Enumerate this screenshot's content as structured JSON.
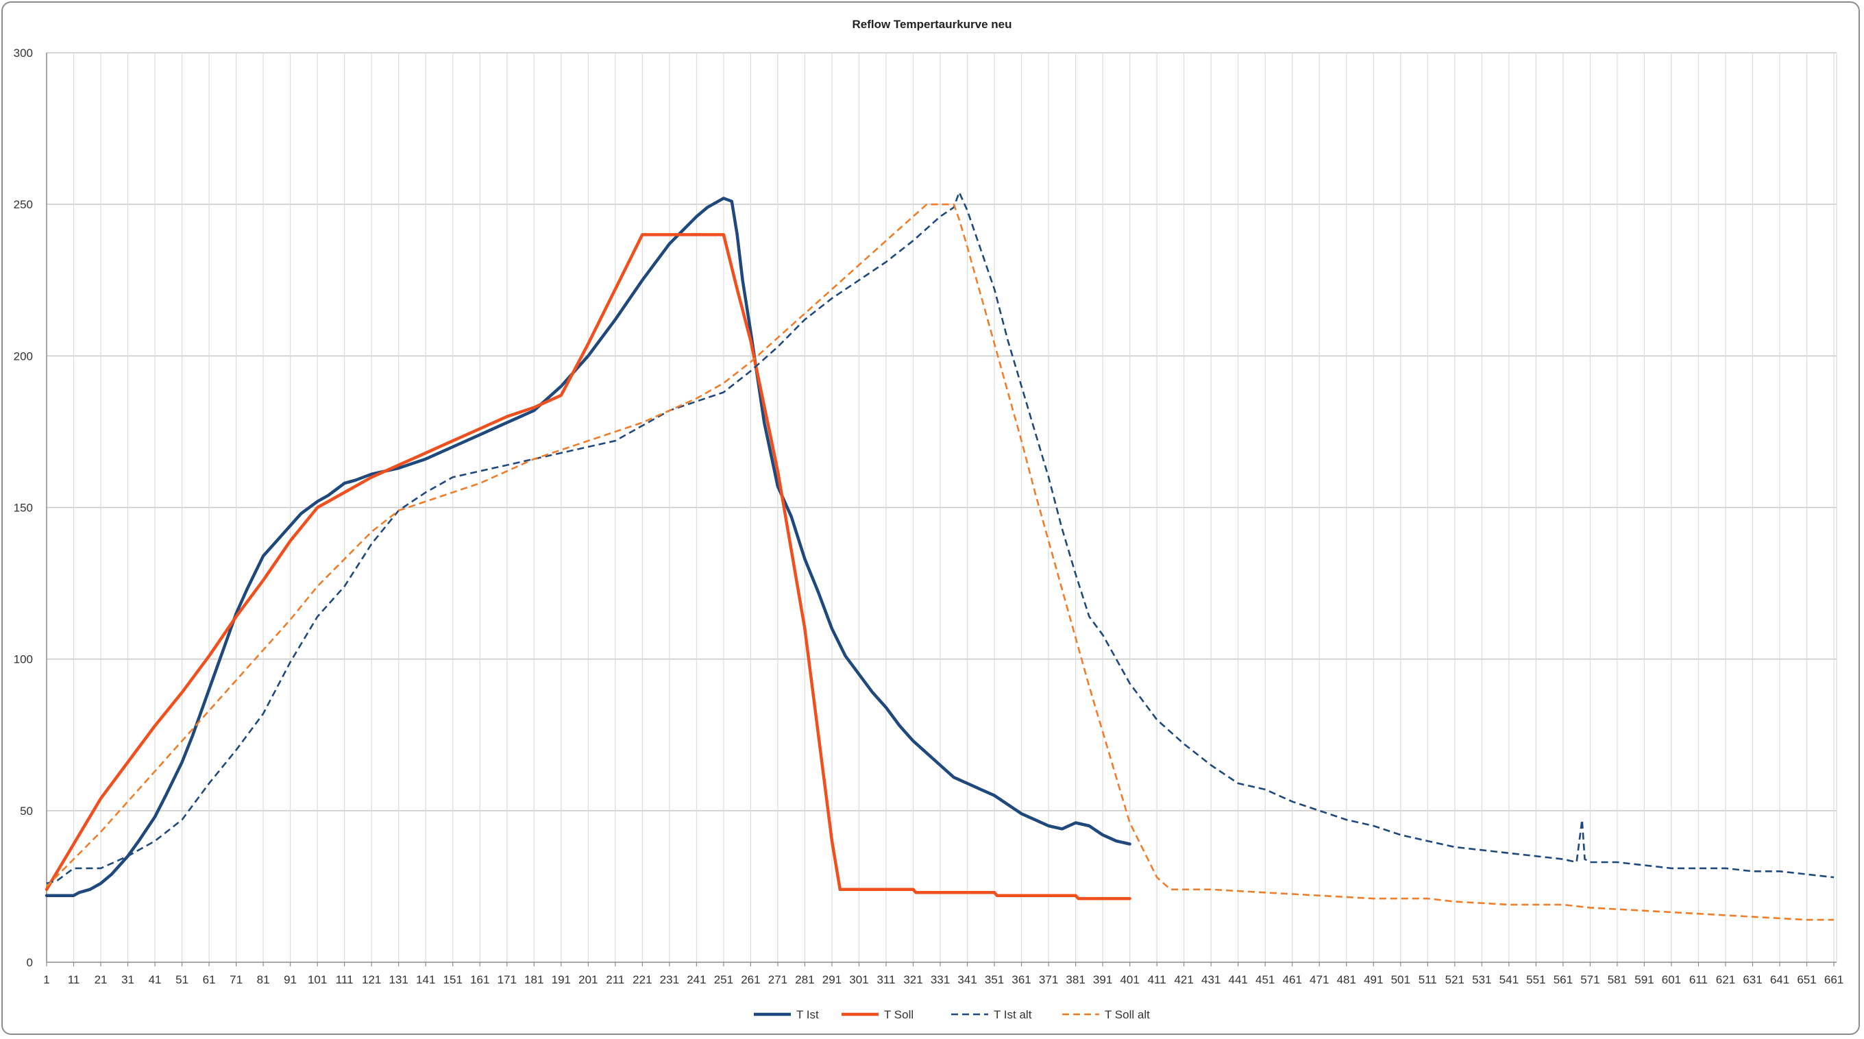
{
  "chart_data": {
    "type": "line",
    "title": "Reflow Tempertaurkurve neu",
    "xlabel": "",
    "ylabel": "",
    "xlim": [
      1,
      662
    ],
    "ylim": [
      0,
      300
    ],
    "y_ticks": [
      0,
      50,
      100,
      150,
      200,
      250,
      300
    ],
    "x_ticks": [
      1,
      11,
      21,
      31,
      41,
      51,
      61,
      71,
      81,
      91,
      101,
      111,
      121,
      131,
      141,
      151,
      161,
      171,
      181,
      191,
      201,
      211,
      221,
      231,
      241,
      251,
      261,
      271,
      281,
      291,
      301,
      311,
      321,
      331,
      341,
      351,
      361,
      371,
      381,
      391,
      401,
      411,
      421,
      431,
      441,
      451,
      461,
      471,
      481,
      491,
      501,
      511,
      521,
      531,
      541,
      551,
      561,
      571,
      581,
      591,
      601,
      611,
      621,
      631,
      641,
      651,
      661
    ],
    "grid": true,
    "legend_position": "bottom",
    "series": [
      {
        "name": "T Ist",
        "color": "#1f497d",
        "style": "solid",
        "points": [
          [
            1,
            22
          ],
          [
            5,
            22
          ],
          [
            11,
            22
          ],
          [
            13,
            23
          ],
          [
            17,
            24
          ],
          [
            21,
            26
          ],
          [
            25,
            29
          ],
          [
            31,
            35
          ],
          [
            35,
            40
          ],
          [
            41,
            48
          ],
          [
            45,
            55
          ],
          [
            51,
            66
          ],
          [
            55,
            75
          ],
          [
            61,
            90
          ],
          [
            65,
            100
          ],
          [
            71,
            115
          ],
          [
            75,
            123
          ],
          [
            81,
            134
          ],
          [
            85,
            138
          ],
          [
            91,
            144
          ],
          [
            95,
            148
          ],
          [
            101,
            152
          ],
          [
            105,
            154
          ],
          [
            111,
            158
          ],
          [
            115,
            159
          ],
          [
            121,
            161
          ],
          [
            131,
            163
          ],
          [
            141,
            166
          ],
          [
            151,
            170
          ],
          [
            161,
            174
          ],
          [
            171,
            178
          ],
          [
            181,
            182
          ],
          [
            191,
            190
          ],
          [
            201,
            200
          ],
          [
            211,
            212
          ],
          [
            221,
            225
          ],
          [
            231,
            237
          ],
          [
            241,
            246
          ],
          [
            245,
            249
          ],
          [
            251,
            252
          ],
          [
            254,
            251
          ],
          [
            256,
            240
          ],
          [
            258,
            225
          ],
          [
            261,
            208
          ],
          [
            266,
            178
          ],
          [
            271,
            157
          ],
          [
            276,
            147
          ],
          [
            281,
            133
          ],
          [
            286,
            122
          ],
          [
            291,
            110
          ],
          [
            296,
            101
          ],
          [
            301,
            95
          ],
          [
            306,
            89
          ],
          [
            311,
            84
          ],
          [
            316,
            78
          ],
          [
            321,
            73
          ],
          [
            326,
            69
          ],
          [
            331,
            65
          ],
          [
            336,
            61
          ],
          [
            341,
            59
          ],
          [
            346,
            57
          ],
          [
            351,
            55
          ],
          [
            356,
            52
          ],
          [
            361,
            49
          ],
          [
            366,
            47
          ],
          [
            371,
            45
          ],
          [
            376,
            44
          ],
          [
            381,
            46
          ],
          [
            386,
            45
          ],
          [
            391,
            42
          ],
          [
            396,
            40
          ],
          [
            401,
            39
          ]
        ]
      },
      {
        "name": "T Soll",
        "color": "#f0501e",
        "style": "solid",
        "points": [
          [
            1,
            24
          ],
          [
            11,
            39
          ],
          [
            21,
            54
          ],
          [
            31,
            66
          ],
          [
            41,
            78
          ],
          [
            51,
            89
          ],
          [
            61,
            101
          ],
          [
            71,
            114
          ],
          [
            81,
            126
          ],
          [
            91,
            139
          ],
          [
            101,
            150
          ],
          [
            111,
            155
          ],
          [
            121,
            160
          ],
          [
            131,
            164
          ],
          [
            141,
            168
          ],
          [
            151,
            172
          ],
          [
            161,
            176
          ],
          [
            171,
            180
          ],
          [
            181,
            183
          ],
          [
            191,
            187
          ],
          [
            201,
            204
          ],
          [
            211,
            222
          ],
          [
            221,
            240
          ],
          [
            231,
            240
          ],
          [
            241,
            240
          ],
          [
            251,
            240
          ],
          [
            256,
            222
          ],
          [
            261,
            205
          ],
          [
            271,
            162
          ],
          [
            281,
            110
          ],
          [
            286,
            75
          ],
          [
            291,
            40
          ],
          [
            294,
            24
          ],
          [
            301,
            24
          ],
          [
            311,
            24
          ],
          [
            321,
            24
          ],
          [
            322,
            23
          ],
          [
            341,
            23
          ],
          [
            351,
            23
          ],
          [
            352,
            22
          ],
          [
            381,
            22
          ],
          [
            382,
            21
          ],
          [
            401,
            21
          ]
        ]
      },
      {
        "name": "T Ist alt",
        "color": "#1f497d",
        "style": "dashed",
        "points": [
          [
            1,
            26
          ],
          [
            5,
            27
          ],
          [
            11,
            31
          ],
          [
            21,
            31
          ],
          [
            31,
            35
          ],
          [
            41,
            40
          ],
          [
            51,
            47
          ],
          [
            61,
            59
          ],
          [
            71,
            70
          ],
          [
            81,
            82
          ],
          [
            91,
            99
          ],
          [
            101,
            114
          ],
          [
            111,
            124
          ],
          [
            121,
            138
          ],
          [
            131,
            149
          ],
          [
            141,
            155
          ],
          [
            151,
            160
          ],
          [
            161,
            162
          ],
          [
            171,
            164
          ],
          [
            181,
            166
          ],
          [
            191,
            168
          ],
          [
            201,
            170
          ],
          [
            211,
            172
          ],
          [
            221,
            177
          ],
          [
            231,
            182
          ],
          [
            241,
            185
          ],
          [
            251,
            188
          ],
          [
            261,
            195
          ],
          [
            271,
            203
          ],
          [
            281,
            212
          ],
          [
            291,
            219
          ],
          [
            301,
            225
          ],
          [
            311,
            231
          ],
          [
            321,
            238
          ],
          [
            331,
            246
          ],
          [
            336,
            249
          ],
          [
            338,
            254
          ],
          [
            341,
            248
          ],
          [
            346,
            235
          ],
          [
            351,
            222
          ],
          [
            356,
            205
          ],
          [
            361,
            190
          ],
          [
            366,
            175
          ],
          [
            371,
            160
          ],
          [
            376,
            143
          ],
          [
            381,
            128
          ],
          [
            386,
            114
          ],
          [
            391,
            108
          ],
          [
            396,
            100
          ],
          [
            401,
            92
          ],
          [
            411,
            80
          ],
          [
            421,
            72
          ],
          [
            431,
            65
          ],
          [
            441,
            59
          ],
          [
            451,
            57
          ],
          [
            461,
            53
          ],
          [
            471,
            50
          ],
          [
            481,
            47
          ],
          [
            491,
            45
          ],
          [
            501,
            42
          ],
          [
            511,
            40
          ],
          [
            521,
            38
          ],
          [
            531,
            37
          ],
          [
            541,
            36
          ],
          [
            551,
            35
          ],
          [
            561,
            34
          ],
          [
            566,
            33
          ],
          [
            568,
            47
          ],
          [
            569,
            34
          ],
          [
            571,
            33
          ],
          [
            581,
            33
          ],
          [
            591,
            32
          ],
          [
            601,
            31
          ],
          [
            611,
            31
          ],
          [
            621,
            31
          ],
          [
            631,
            30
          ],
          [
            641,
            30
          ],
          [
            651,
            29
          ],
          [
            661,
            28
          ]
        ]
      },
      {
        "name": "T Soll alt",
        "color": "#f07d2a",
        "style": "dashed",
        "points": [
          [
            1,
            25
          ],
          [
            11,
            34
          ],
          [
            21,
            43
          ],
          [
            31,
            53
          ],
          [
            41,
            63
          ],
          [
            51,
            73
          ],
          [
            61,
            83
          ],
          [
            71,
            93
          ],
          [
            81,
            103
          ],
          [
            91,
            113
          ],
          [
            101,
            124
          ],
          [
            111,
            133
          ],
          [
            121,
            142
          ],
          [
            131,
            149
          ],
          [
            141,
            152
          ],
          [
            151,
            155
          ],
          [
            161,
            158
          ],
          [
            171,
            162
          ],
          [
            181,
            166
          ],
          [
            191,
            169
          ],
          [
            201,
            172
          ],
          [
            211,
            175
          ],
          [
            221,
            178
          ],
          [
            231,
            182
          ],
          [
            241,
            186
          ],
          [
            251,
            191
          ],
          [
            261,
            198
          ],
          [
            271,
            206
          ],
          [
            281,
            214
          ],
          [
            291,
            222
          ],
          [
            301,
            230
          ],
          [
            311,
            238
          ],
          [
            321,
            246
          ],
          [
            326,
            250
          ],
          [
            336,
            250
          ],
          [
            338,
            245
          ],
          [
            341,
            236
          ],
          [
            346,
            220
          ],
          [
            351,
            204
          ],
          [
            356,
            188
          ],
          [
            361,
            172
          ],
          [
            366,
            155
          ],
          [
            371,
            139
          ],
          [
            376,
            123
          ],
          [
            381,
            107
          ],
          [
            386,
            91
          ],
          [
            391,
            76
          ],
          [
            396,
            61
          ],
          [
            401,
            46
          ],
          [
            411,
            28
          ],
          [
            416,
            24
          ],
          [
            421,
            24
          ],
          [
            431,
            24
          ],
          [
            451,
            23
          ],
          [
            471,
            22
          ],
          [
            491,
            21
          ],
          [
            511,
            21
          ],
          [
            521,
            20
          ],
          [
            541,
            19
          ],
          [
            561,
            19
          ],
          [
            571,
            18
          ],
          [
            591,
            17
          ],
          [
            611,
            16
          ],
          [
            631,
            15
          ],
          [
            651,
            14
          ],
          [
            661,
            14
          ]
        ]
      }
    ]
  }
}
